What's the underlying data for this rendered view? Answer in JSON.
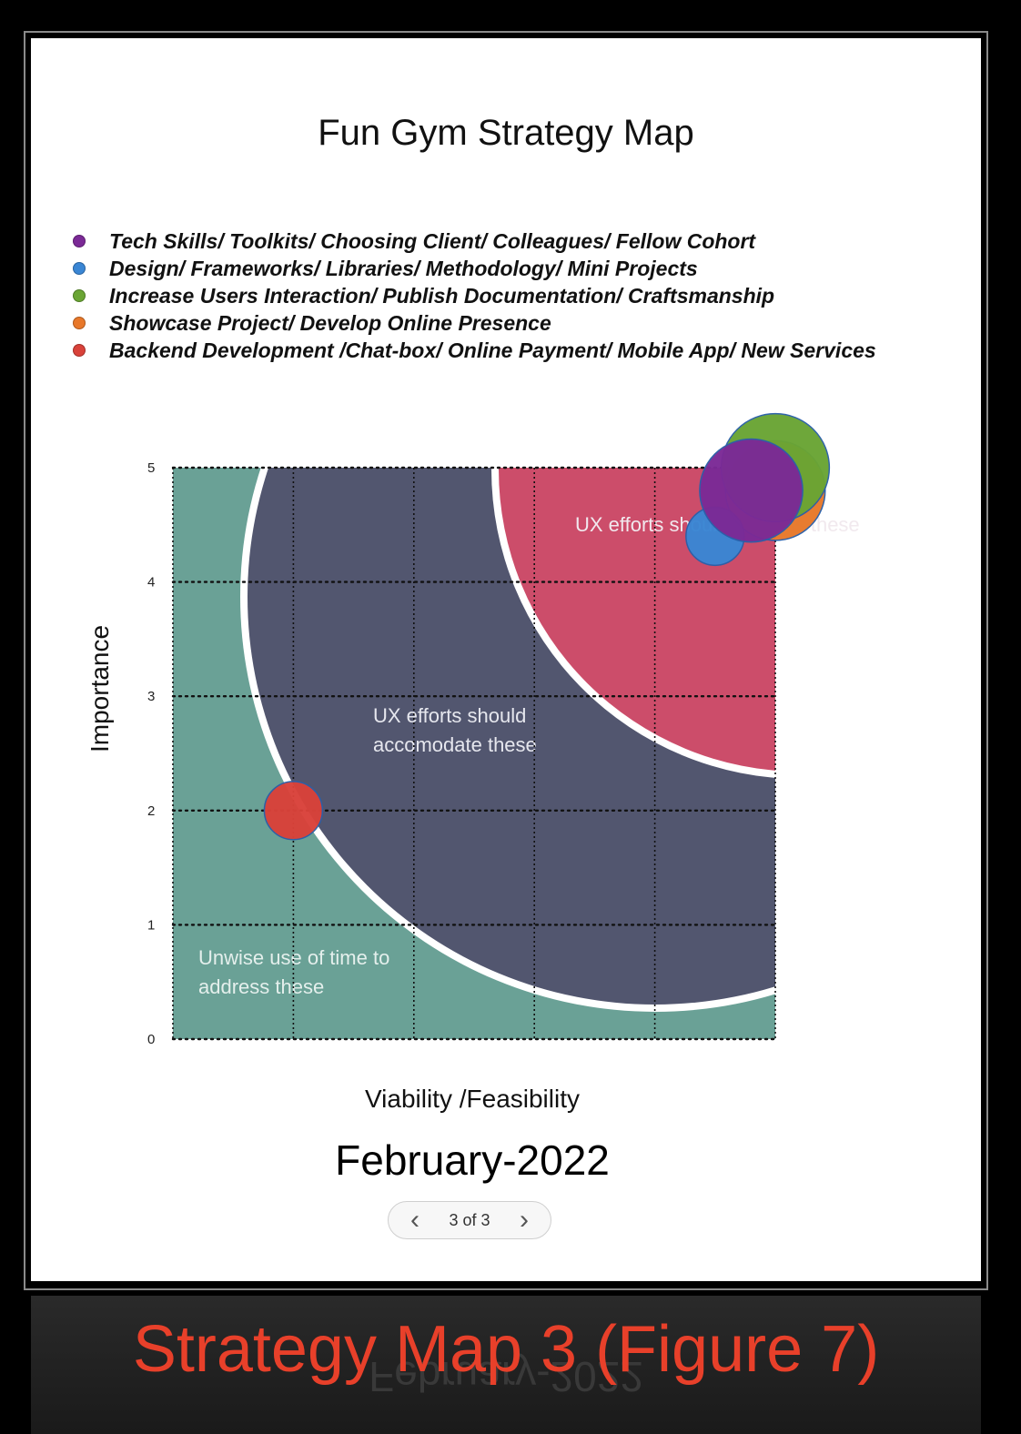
{
  "title": "Fun Gym Strategy Map",
  "legend": [
    {
      "label": "Tech Skills/ Toolkits/ Choosing Client/ Colleagues/ Fellow Cohort",
      "color": "#7b2a96"
    },
    {
      "label": "Design/ Frameworks/ Libraries/ Methodology/ Mini Projects",
      "color": "#3a86d4"
    },
    {
      "label": "Increase Users Interaction/ Publish Documentation/ Craftsmanship",
      "color": "#6aa534"
    },
    {
      "label": "Showcase Project/ Develop Online Presence",
      "color": "#e8782a"
    },
    {
      "label": "Backend Development /Chat-box/ Online Payment/ Mobile App/ New Services",
      "color": "#d9423a"
    }
  ],
  "regions": {
    "address": "UX efforts should address these",
    "accommodate_line1": "UX efforts should",
    "accommodate_line2": "accomodate these",
    "unwise_line1": "Unwise use of time to",
    "unwise_line2": "address these"
  },
  "chart_data": {
    "type": "scatter",
    "xlabel": "Viability /Feasibility",
    "ylabel": "Importance",
    "xlim": [
      0,
      5
    ],
    "ylim": [
      0,
      5
    ],
    "yticks": [
      "0",
      "1",
      "2",
      "3",
      "4",
      "5"
    ],
    "grid": true,
    "series": [
      {
        "color": "#e8782a",
        "x": 5.0,
        "y": 4.8,
        "size": 0.6
      },
      {
        "color": "#6aa534",
        "x": 5.0,
        "y": 5.0,
        "size": 0.65
      },
      {
        "color": "#3a86d4",
        "x": 4.5,
        "y": 4.4,
        "size": 0.35
      },
      {
        "color": "#7b2a96",
        "x": 4.8,
        "y": 4.8,
        "size": 0.62
      },
      {
        "color": "#d9423a",
        "x": 1.0,
        "y": 2.0,
        "size": 0.35
      }
    ]
  },
  "date": "February-2022",
  "pager": {
    "prev": "‹",
    "count": "3 of 3",
    "next": "›"
  },
  "caption": "Strategy Map 3 (Figure 7)",
  "reflection": "February-2022"
}
